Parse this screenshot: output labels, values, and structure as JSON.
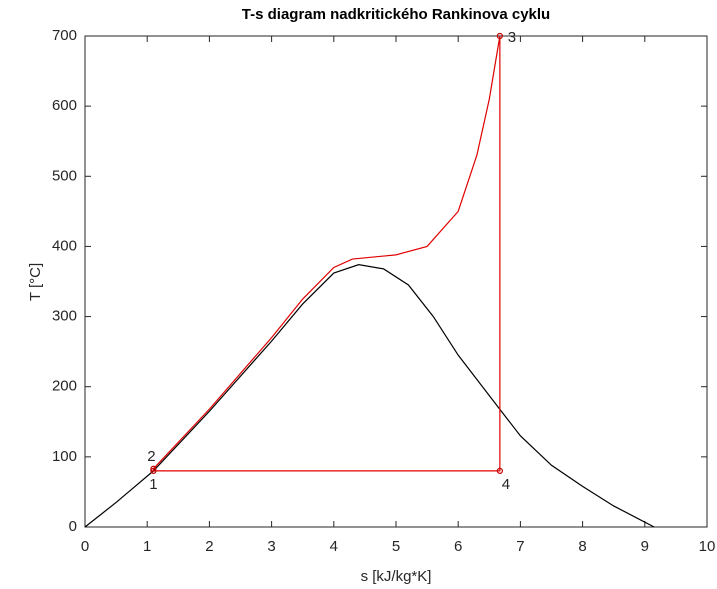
{
  "chart_data": {
    "type": "line",
    "title": "T-s diagram nadkritického Rankinova cyklu",
    "xlabel": "s [kJ/kg*K]",
    "ylabel": "T [°C]",
    "xlim": [
      0,
      10
    ],
    "xticks": [
      0,
      1,
      2,
      3,
      4,
      5,
      6,
      7,
      8,
      9,
      10
    ],
    "ylim": [
      0,
      700
    ],
    "yticks": [
      0,
      100,
      200,
      300,
      400,
      500,
      600,
      700
    ],
    "series": [
      {
        "color": "#000000",
        "x": [
          0,
          0.5,
          1.1,
          2,
          3,
          3.5,
          4,
          4.4,
          4.8,
          5.2,
          5.6,
          6,
          6.65,
          7,
          7.5,
          8,
          8.5,
          9.15
        ],
        "values": [
          0,
          35,
          80,
          165,
          265,
          318,
          362,
          374,
          368,
          345,
          300,
          245,
          170,
          130,
          88,
          58,
          30,
          0
        ]
      },
      {
        "color": "#e00000",
        "x": [
          1.1,
          1.1,
          2,
          3,
          3.5,
          4,
          4.3,
          5,
          5.5,
          6,
          6.3,
          6.5,
          6.67,
          6.67,
          1.1
        ],
        "values": [
          80,
          83,
          168,
          270,
          325,
          370,
          382,
          388,
          400,
          450,
          530,
          610,
          700,
          80,
          80
        ]
      }
    ],
    "annotations": [
      {
        "text": "1",
        "x": 1.1,
        "y": 80
      },
      {
        "text": "2",
        "x": 1.1,
        "y": 83
      },
      {
        "text": "3",
        "x": 6.67,
        "y": 700
      },
      {
        "text": "4",
        "x": 6.67,
        "y": 80
      }
    ]
  }
}
